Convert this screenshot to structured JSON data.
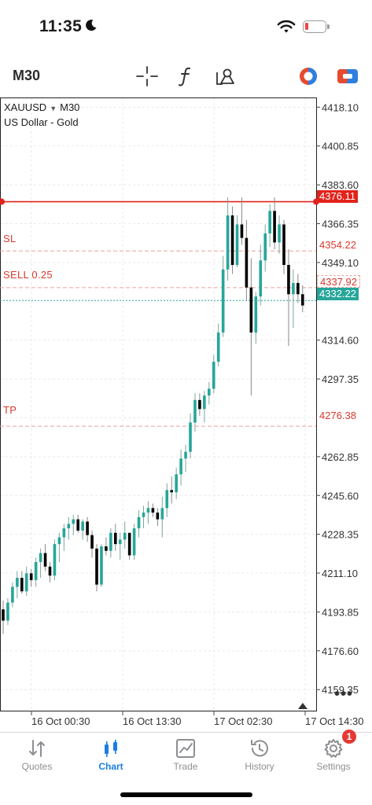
{
  "status": {
    "time": "11:35"
  },
  "toolbar": {
    "timeframe": "M30",
    "icons": [
      "crosshair-icon",
      "function-icon",
      "objects-icon",
      "one-click-trading-icon",
      "trade-icon"
    ]
  },
  "chart": {
    "symbol": "XAUUSD",
    "symbol_timeframe": "M30",
    "description": "US Dollar - Gold",
    "levels": {
      "sl_label": "SL",
      "sl_price": "4354.22",
      "sell_label": "SELL 0.25",
      "sell_price": "4337.92",
      "tp_label": "TP",
      "tp_price": "4276.38",
      "alert_price": "4376.11",
      "bid_price": "4332.22"
    },
    "colors": {
      "bull": "#26a69a",
      "bear": "#000000",
      "level_red": "#d9382f",
      "bid": "#26a69a"
    }
  },
  "chart_data": {
    "type": "candlestick",
    "ylim": [
      4150,
      4422
    ],
    "y_ticks": [
      "4418.10",
      "4400.85",
      "4383.60",
      "4366.35",
      "4349.10",
      "4314.60",
      "4297.35",
      "4280.10",
      "4262.85",
      "4245.60",
      "4228.35",
      "4211.10",
      "4193.85",
      "4176.60",
      "4159.35"
    ],
    "x_labels": [
      "16 Oct 00:30",
      "16 Oct 13:30",
      "17 Oct 02:30",
      "17 Oct 14:30"
    ],
    "candles": [
      [
        4195,
        4199,
        4184,
        4190
      ],
      [
        4190,
        4200,
        4188,
        4198
      ],
      [
        4198,
        4207,
        4196,
        4205
      ],
      [
        4205,
        4212,
        4200,
        4209
      ],
      [
        4209,
        4212,
        4202,
        4203
      ],
      [
        4203,
        4214,
        4201,
        4211
      ],
      [
        4211,
        4213,
        4205,
        4208
      ],
      [
        4208,
        4218,
        4205,
        4216
      ],
      [
        4216,
        4222,
        4209,
        4220
      ],
      [
        4220,
        4224,
        4212,
        4214
      ],
      [
        4214,
        4216,
        4207,
        4210
      ],
      [
        4210,
        4226,
        4208,
        4224
      ],
      [
        4224,
        4229,
        4216,
        4227
      ],
      [
        4227,
        4233,
        4221,
        4231
      ],
      [
        4231,
        4236,
        4226,
        4233
      ],
      [
        4233,
        4237,
        4228,
        4235
      ],
      [
        4235,
        4237,
        4229,
        4230
      ],
      [
        4230,
        4235,
        4226,
        4234
      ],
      [
        4234,
        4236,
        4225,
        4228
      ],
      [
        4228,
        4230,
        4218,
        4222
      ],
      [
        4222,
        4224,
        4203,
        4206
      ],
      [
        4206,
        4224,
        4205,
        4223
      ],
      [
        4223,
        4227,
        4219,
        4221
      ],
      [
        4221,
        4231,
        4218,
        4229
      ],
      [
        4229,
        4233,
        4221,
        4224
      ],
      [
        4224,
        4229,
        4217,
        4226
      ],
      [
        4226,
        4234,
        4222,
        4229
      ],
      [
        4229,
        4229,
        4217,
        4219
      ],
      [
        4219,
        4233,
        4217,
        4231
      ],
      [
        4231,
        4239,
        4227,
        4236
      ],
      [
        4236,
        4241,
        4231,
        4238
      ],
      [
        4238,
        4243,
        4233,
        4240
      ],
      [
        4240,
        4242,
        4236,
        4238
      ],
      [
        4238,
        4240,
        4232,
        4235
      ],
      [
        4235,
        4245,
        4227,
        4240
      ],
      [
        4240,
        4251,
        4236,
        4248
      ],
      [
        4248,
        4254,
        4242,
        4247
      ],
      [
        4247,
        4258,
        4244,
        4255
      ],
      [
        4255,
        4266,
        4250,
        4262
      ],
      [
        4262,
        4268,
        4256,
        4265
      ],
      [
        4265,
        4282,
        4262,
        4278
      ],
      [
        4278,
        4291,
        4274,
        4288
      ],
      [
        4288,
        4291,
        4281,
        4284
      ],
      [
        4284,
        4292,
        4278,
        4290
      ],
      [
        4290,
        4296,
        4286,
        4293
      ],
      [
        4293,
        4308,
        4291,
        4305
      ],
      [
        4305,
        4322,
        4303,
        4318
      ],
      [
        4318,
        4352,
        4316,
        4346
      ],
      [
        4346,
        4378,
        4341,
        4370
      ],
      [
        4370,
        4374,
        4344,
        4348
      ],
      [
        4348,
        4370,
        4347,
        4366
      ],
      [
        4366,
        4378,
        4357,
        4360
      ],
      [
        4360,
        4368,
        4332,
        4338
      ],
      [
        4338,
        4351,
        4290,
        4318
      ],
      [
        4318,
        4336,
        4313,
        4334
      ],
      [
        4334,
        4357,
        4330,
        4350
      ],
      [
        4350,
        4366,
        4345,
        4362
      ],
      [
        4362,
        4375,
        4356,
        4372
      ],
      [
        4372,
        4378,
        4355,
        4358
      ],
      [
        4358,
        4370,
        4353,
        4366
      ],
      [
        4366,
        4368,
        4344,
        4348
      ],
      [
        4348,
        4355,
        4312,
        4335
      ],
      [
        4335,
        4346,
        4320,
        4340
      ],
      [
        4340,
        4344,
        4331,
        4335
      ],
      [
        4335,
        4339,
        4327,
        4330
      ]
    ]
  },
  "tabs": [
    {
      "label": "Quotes"
    },
    {
      "label": "Chart"
    },
    {
      "label": "Trade"
    },
    {
      "label": "History"
    },
    {
      "label": "Settings",
      "badge": "1"
    }
  ]
}
